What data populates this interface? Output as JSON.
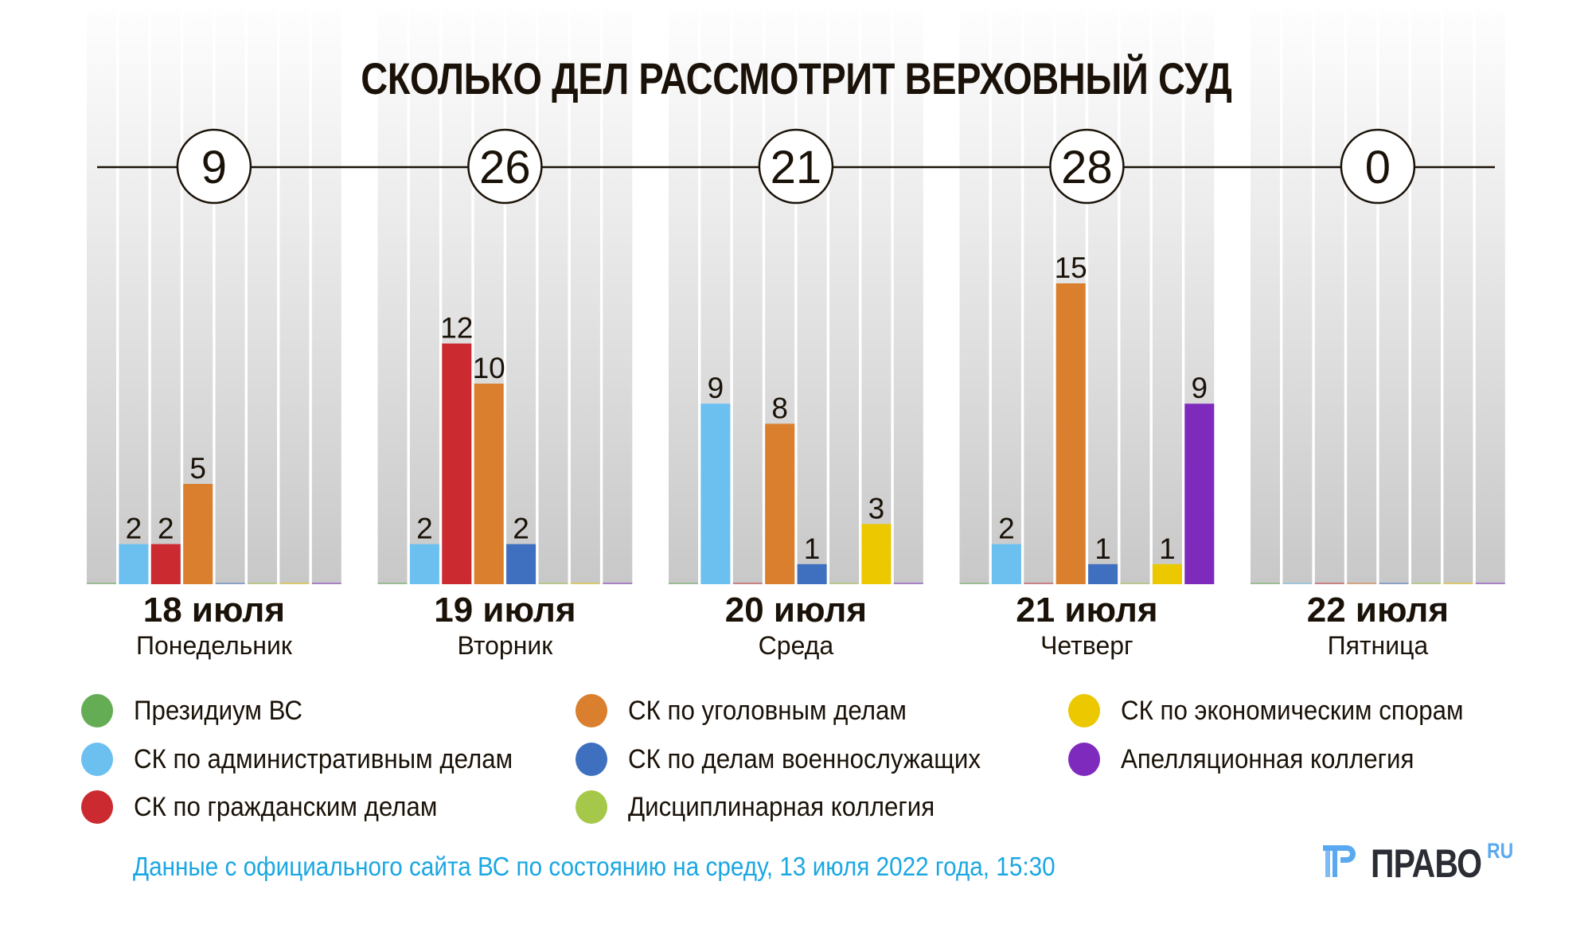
{
  "chart_data": {
    "type": "bar",
    "title": "СКОЛЬКО ДЕЛ РАССМОТРИТ ВЕРХОВНЫЙ СУД",
    "xlabel": "",
    "ylabel": "",
    "grid": false,
    "legend_position": "bottom",
    "categories": [
      {
        "date": "18 июля",
        "weekday": "Понедельник",
        "total": 9
      },
      {
        "date": "19 июля",
        "weekday": "Вторник",
        "total": 26
      },
      {
        "date": "20 июля",
        "weekday": "Среда",
        "total": 21
      },
      {
        "date": "21 июля",
        "weekday": "Четверг",
        "total": 28
      },
      {
        "date": "22 июля",
        "weekday": "Пятница",
        "total": 0
      }
    ],
    "series": [
      {
        "name": "Президиум ВС",
        "color": "#64ad55",
        "values": [
          0,
          0,
          0,
          0,
          0
        ]
      },
      {
        "name": "СК по административным делам",
        "color": "#6cc0f0",
        "values": [
          2,
          2,
          9,
          2,
          0
        ]
      },
      {
        "name": "СК по гражданским делам",
        "color": "#cb2a30",
        "values": [
          2,
          12,
          0,
          0,
          0
        ]
      },
      {
        "name": "СК по уголовным делам",
        "color": "#d97f2d",
        "values": [
          5,
          10,
          8,
          15,
          0
        ]
      },
      {
        "name": "СК по делам военнослужащих",
        "color": "#3f70bf",
        "values": [
          0,
          2,
          1,
          1,
          0
        ]
      },
      {
        "name": "Дисциплинарная коллегия",
        "color": "#a6c84a",
        "values": [
          0,
          0,
          0,
          0,
          0
        ]
      },
      {
        "name": "СК по экономическим спорам",
        "color": "#ecc800",
        "values": [
          0,
          0,
          3,
          1,
          0
        ]
      },
      {
        "name": "Апелляционная коллегия",
        "color": "#7e2bbd",
        "values": [
          0,
          0,
          0,
          9,
          0
        ]
      }
    ],
    "ylim": [
      0,
      28
    ]
  },
  "legend": {
    "columns": [
      [
        0,
        1,
        2
      ],
      [
        3,
        4,
        5
      ],
      [
        6,
        7
      ]
    ]
  },
  "footer": {
    "note": "Данные с официального сайта ВС по состоянию на среду, 13 июля 2022 года, 15:30",
    "note_color": "#1ba7e2"
  },
  "logo": {
    "text": "ПРАВО",
    "suffix": "RU",
    "mark_color": "#5aa9f0"
  }
}
